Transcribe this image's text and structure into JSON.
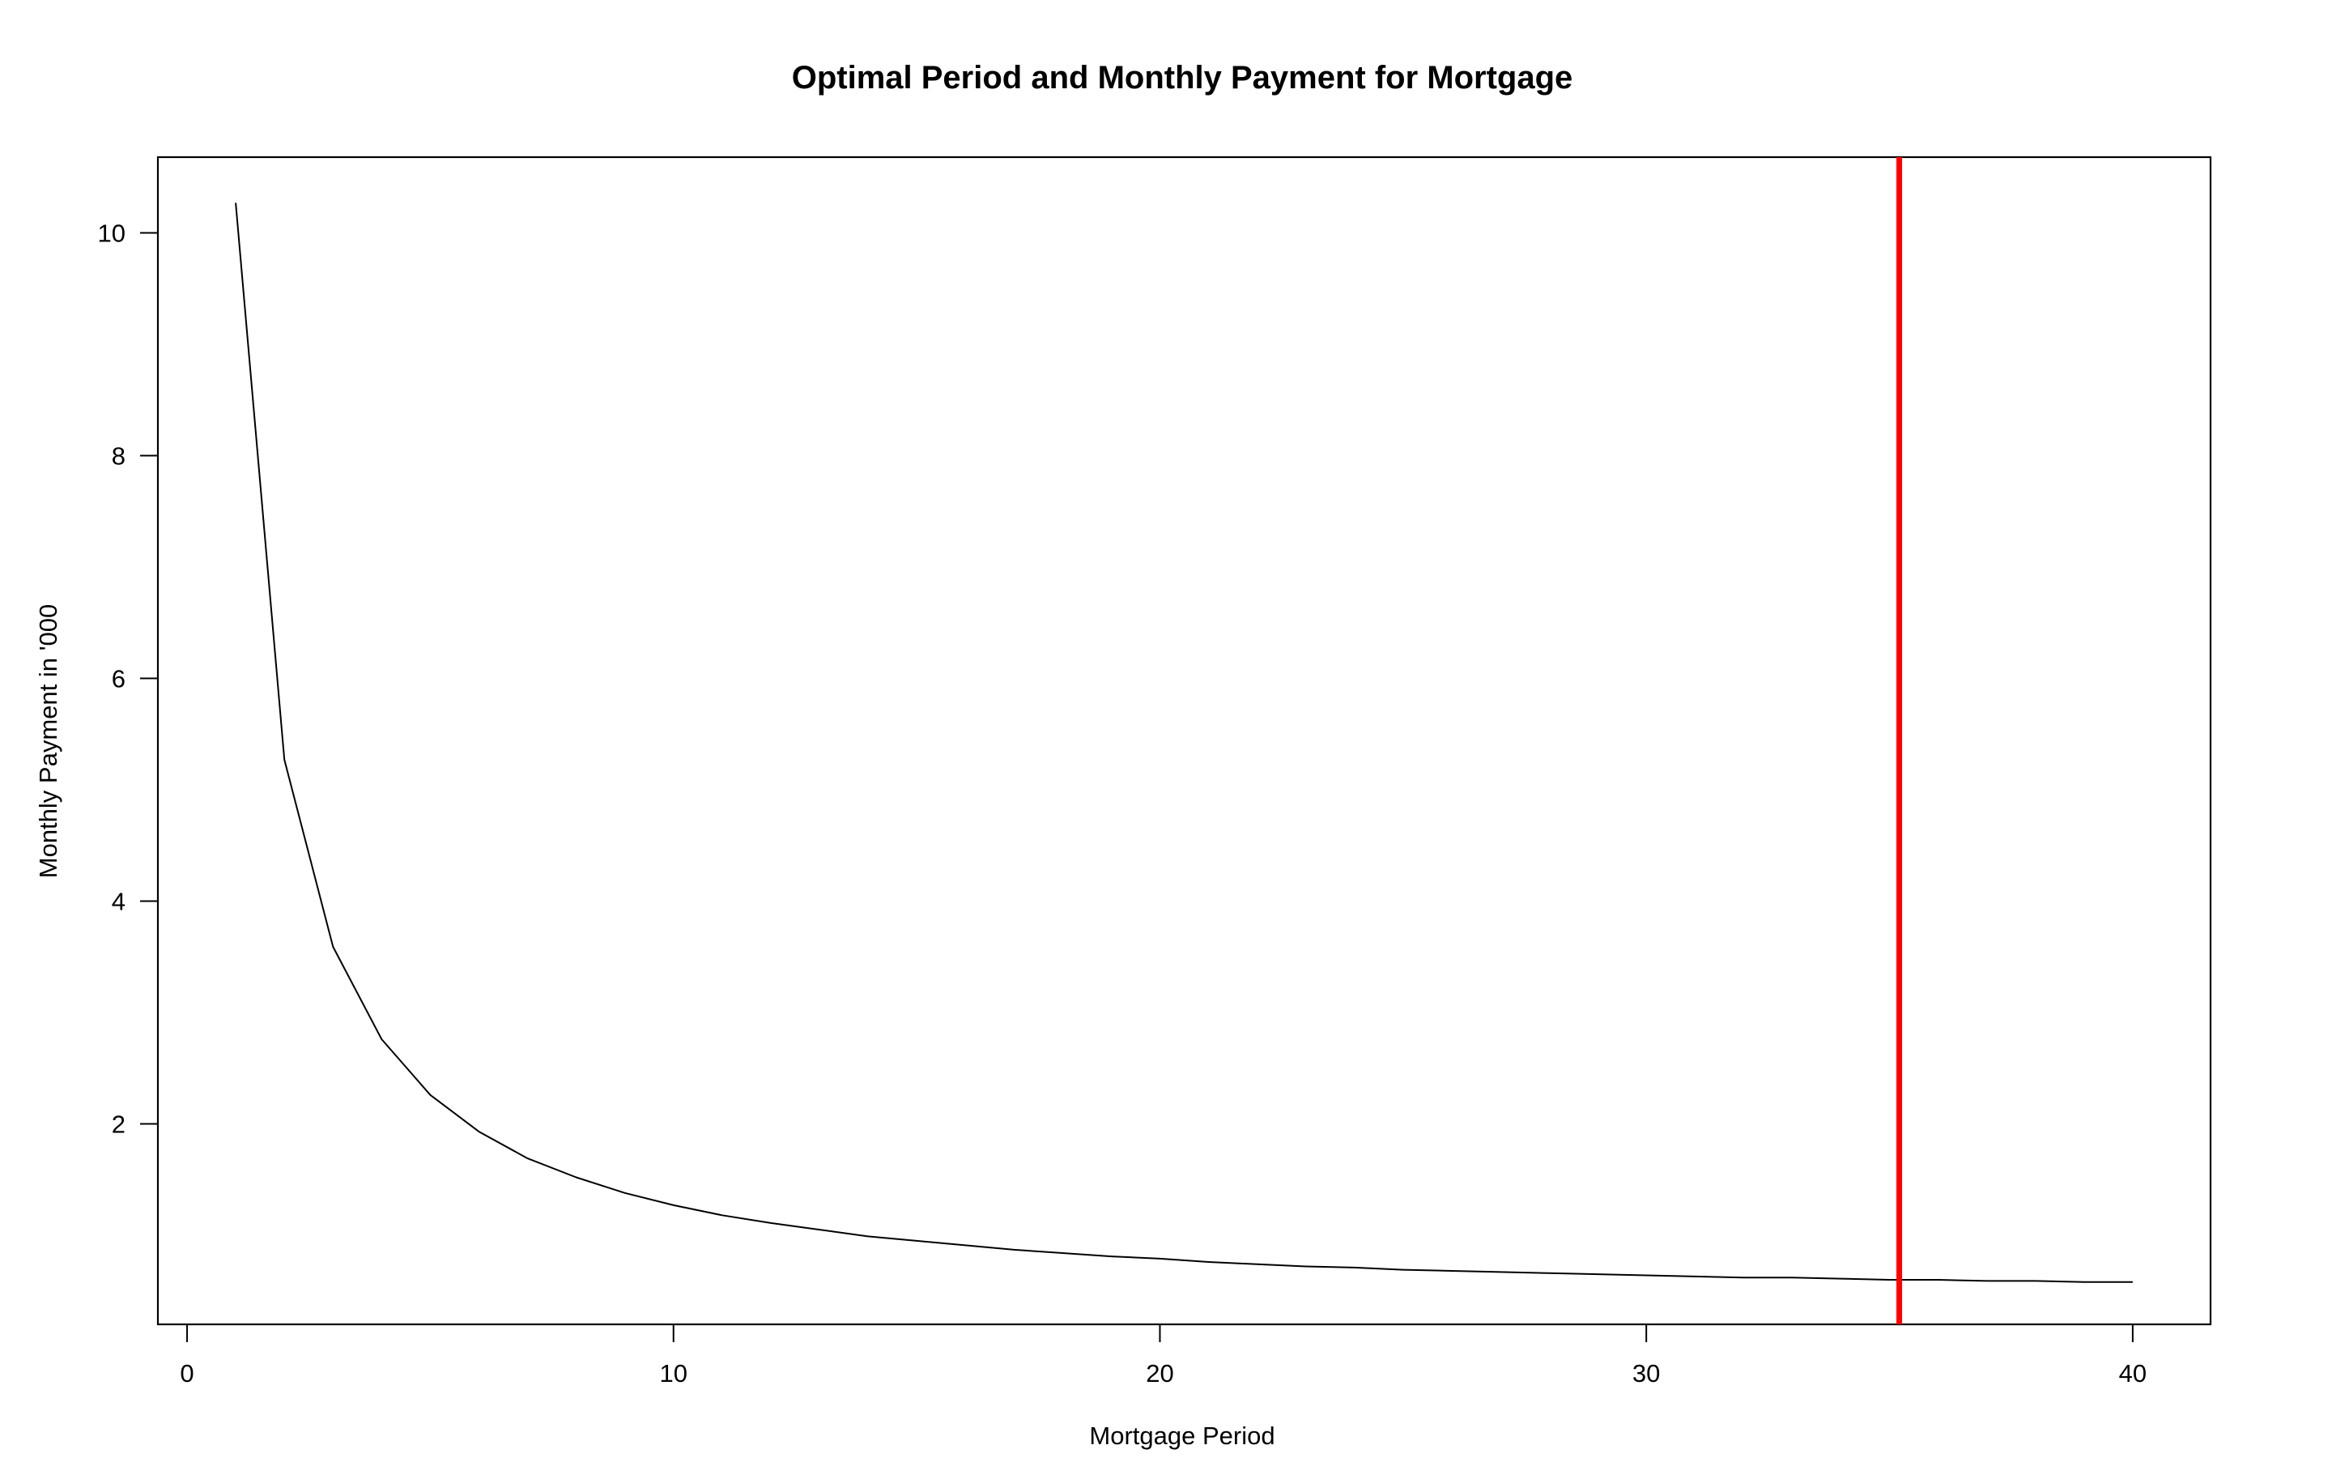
{
  "chart_data": {
    "type": "line",
    "title": "Optimal Period and Monthly Payment for Mortgage",
    "xlabel": "Mortgage Period",
    "ylabel": "Monthly Payment in '000",
    "xlim": [
      -0.6,
      41.6
    ],
    "ylim": [
      0.2,
      10.68
    ],
    "xticks": [
      0,
      10,
      20,
      30,
      40
    ],
    "yticks": [
      2,
      4,
      6,
      8,
      10
    ],
    "grid": false,
    "legend": "none",
    "series": [
      {
        "color": "#000000",
        "x": [
          1,
          2,
          3,
          4,
          5,
          6,
          7,
          8,
          9,
          10,
          11,
          12,
          13,
          14,
          15,
          16,
          17,
          18,
          19,
          20,
          21,
          22,
          23,
          24,
          25,
          26,
          27,
          28,
          29,
          30,
          31,
          32,
          33,
          34,
          35,
          36,
          37,
          38,
          39,
          40
        ],
        "values": [
          10.27,
          5.27,
          3.59,
          2.76,
          2.26,
          1.93,
          1.69,
          1.52,
          1.38,
          1.27,
          1.18,
          1.11,
          1.05,
          0.99,
          0.95,
          0.91,
          0.87,
          0.84,
          0.81,
          0.79,
          0.76,
          0.74,
          0.72,
          0.71,
          0.69,
          0.68,
          0.67,
          0.66,
          0.65,
          0.64,
          0.63,
          0.62,
          0.62,
          0.61,
          0.6,
          0.6,
          0.59,
          0.59,
          0.58,
          0.58
        ]
      }
    ],
    "vline": {
      "x": 35.2,
      "color": "#ff0000"
    }
  }
}
